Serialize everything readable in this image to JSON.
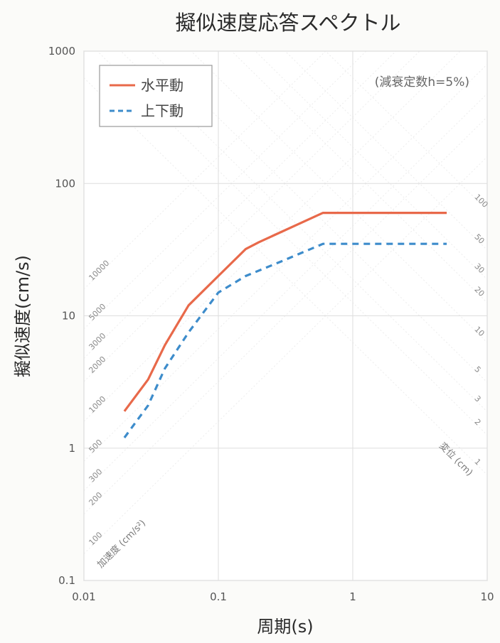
{
  "chart_data": {
    "type": "line",
    "title": "擬似速度応答スペクトル",
    "xlabel": "周期(s)",
    "ylabel": "擬似速度(cm/s)",
    "x_scale": "log",
    "y_scale": "log",
    "xlim": [
      0.01,
      10
    ],
    "ylim": [
      0.1,
      1000
    ],
    "x_ticks": [
      "0.01",
      "0.1",
      "1",
      "10"
    ],
    "y_ticks": [
      "0.1",
      "1",
      "10",
      "100",
      "1000"
    ],
    "x_tick_values": [
      0.01,
      0.1,
      1,
      10
    ],
    "y_tick_values": [
      0.1,
      1,
      10,
      100,
      1000
    ],
    "grid": true,
    "legend_position": "top-left",
    "annotation": "(減衰定数h=5%)",
    "series": [
      {
        "name": "水平動",
        "color": "#e8694a",
        "style": "solid",
        "points": [
          [
            0.02,
            1.9
          ],
          [
            0.03,
            3.3
          ],
          [
            0.04,
            6.0
          ],
          [
            0.06,
            12.0
          ],
          [
            0.1,
            20.0
          ],
          [
            0.16,
            32.0
          ],
          [
            0.2,
            36.0
          ],
          [
            0.6,
            60.0
          ],
          [
            5.0,
            60.0
          ]
        ]
      },
      {
        "name": "上下動",
        "color": "#3d8ccb",
        "style": "dashed",
        "points": [
          [
            0.02,
            1.2
          ],
          [
            0.03,
            2.1
          ],
          [
            0.04,
            4.0
          ],
          [
            0.06,
            7.5
          ],
          [
            0.1,
            15.0
          ],
          [
            0.16,
            20.0
          ],
          [
            0.3,
            26.0
          ],
          [
            0.6,
            35.0
          ],
          [
            5.0,
            35.0
          ]
        ]
      }
    ],
    "acceleration_axis": {
      "title": "加速度 (cm/s²)",
      "values": [
        100,
        200,
        300,
        500,
        1000,
        2000,
        3000,
        5000,
        10000
      ]
    },
    "displacement_axis": {
      "title": "変位 (cm)",
      "values": [
        1,
        2,
        3,
        5,
        10,
        20,
        30,
        50,
        100
      ]
    }
  }
}
